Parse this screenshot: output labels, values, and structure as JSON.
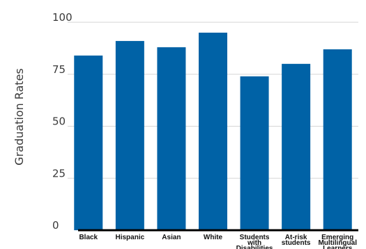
{
  "chart_data": {
    "type": "bar",
    "ylabel": "Graduation Rates",
    "ylim": [
      0,
      100
    ],
    "yticks": [
      0,
      25,
      50,
      75,
      100
    ],
    "grid": true,
    "categories": [
      "Black",
      "Hispanic",
      "Asian",
      "White",
      "Students with Disabilities",
      "At-risk students",
      "Emerging Multilingual Learners"
    ],
    "category_lines": [
      [
        "Black"
      ],
      [
        "Hispanic"
      ],
      [
        "Asian"
      ],
      [
        "White"
      ],
      [
        "Students",
        "with",
        "Disabilities"
      ],
      [
        "At-risk",
        "students"
      ],
      [
        "Emerging",
        "Multilingual",
        "Learners"
      ]
    ],
    "values": [
      84,
      91,
      88,
      95,
      74,
      80,
      87
    ],
    "bar_color": "#0062a6",
    "grid_color": "#d6d6d6",
    "axis_color": "#000000"
  }
}
